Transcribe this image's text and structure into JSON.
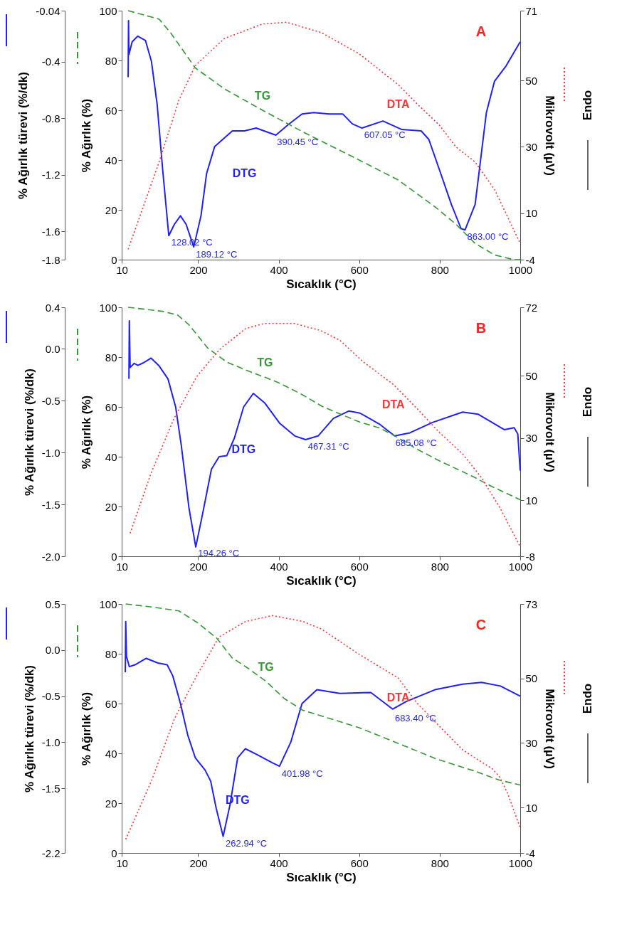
{
  "chart_data": [
    {
      "type": "line",
      "title": "A",
      "xlabel": "Sıcaklık (°C)",
      "ylabel": "% Ağırlık (%)",
      "y2label": "Mikrovolt (µV)",
      "y3label": "% Ağırlık türevi (%/dk)",
      "xlim": [
        10,
        1000
      ],
      "xticks": [
        10,
        200,
        400,
        600,
        800,
        1000
      ],
      "ylim": [
        0,
        100
      ],
      "yticks": [
        0,
        20,
        40,
        60,
        80,
        100
      ],
      "y2lim": [
        -4,
        71
      ],
      "y2ticks": [
        -4,
        10,
        30,
        50,
        71
      ],
      "y3lim": [
        -1.8,
        -0.04
      ],
      "y3ticks": [
        -1.8,
        -1.6,
        -1.2,
        -0.8,
        -0.4,
        -0.04
      ],
      "series": [
        {
          "name": "DTG",
          "axis": "y3",
          "color": "#1f1fff",
          "line_style": "solid",
          "x": [
            26,
            27,
            28,
            36,
            50,
            69,
            84,
            98,
            112,
            127,
            141,
            156,
            170,
            189,
            207,
            221,
            241,
            285,
            315,
            344,
            393,
            422,
            458,
            487,
            525,
            559,
            583,
            607,
            659,
            706,
            754,
            773,
            800,
            829,
            853,
            863,
            888,
            916,
            936,
            965,
            1000
          ],
          "values": [
            -0.51,
            -0.11,
            -0.35,
            -0.26,
            -0.22,
            -0.25,
            -0.4,
            -0.7,
            -1.17,
            -1.63,
            -1.55,
            -1.49,
            -1.55,
            -1.71,
            -1.49,
            -1.19,
            -1.0,
            -0.89,
            -0.89,
            -0.87,
            -0.92,
            -0.85,
            -0.77,
            -0.76,
            -0.77,
            -0.77,
            -0.84,
            -0.87,
            -0.82,
            -0.88,
            -0.89,
            -0.95,
            -1.17,
            -1.41,
            -1.58,
            -1.59,
            -1.41,
            -0.76,
            -0.54,
            -0.43,
            -0.26
          ]
        },
        {
          "name": "TG",
          "axis": "y",
          "color": "#339933",
          "line_style": "dashed",
          "x": [
            26,
            103,
            132,
            193,
            265,
            360,
            458,
            600,
            697,
            790,
            840,
            888,
            936,
            984,
            1000
          ],
          "values": [
            100,
            96.6,
            91,
            77,
            68.6,
            60,
            51.5,
            40,
            32,
            21,
            14.3,
            6.5,
            1.9,
            0,
            0
          ]
        },
        {
          "name": "DTA",
          "axis": "y2",
          "color": "#ff3333",
          "line_style": "dotted",
          "x": [
            26,
            103,
            152,
            193,
            265,
            360,
            420,
            506,
            600,
            697,
            745,
            800,
            840,
            888,
            936,
            1000
          ],
          "values": [
            -0.9,
            25.4,
            44,
            54.5,
            62.6,
            67,
            67.5,
            64.4,
            58,
            48.7,
            42.8,
            36.4,
            30,
            25.4,
            17.2,
            0.9
          ]
        }
      ],
      "annotations": [
        {
          "text": "128.02 °C",
          "x": 128.02,
          "y": 9.6
        },
        {
          "text": "189.12 °C",
          "x": 189.12,
          "y": 5
        },
        {
          "text": "390.45 °C",
          "x": 390.45,
          "y": 50
        },
        {
          "text": "607.05 °C",
          "x": 607.05,
          "y": 53
        },
        {
          "text": "863.00 °C",
          "x": 863.0,
          "y": 12
        },
        "Endo"
      ]
    },
    {
      "type": "line",
      "title": "B",
      "xlabel": "Sıcaklık (°C)",
      "ylabel": "% Ağırlık (%)",
      "y2label": "Mikrovolt (µV)",
      "y3label": "% Ağırlık türevi (%/dk)",
      "xlim": [
        10,
        1000
      ],
      "xticks": [
        10,
        200,
        400,
        600,
        800,
        1000
      ],
      "ylim": [
        0,
        100
      ],
      "yticks": [
        0,
        20,
        40,
        60,
        80,
        100
      ],
      "y2lim": [
        -8,
        72
      ],
      "y2ticks": [
        -8,
        10,
        30,
        50,
        72
      ],
      "y3lim": [
        -2.0,
        0.4
      ],
      "y3ticks": [
        {
          "value": -2.0,
          "label": "-2.0"
        },
        -1.5,
        {
          "value": -1.0,
          "label": "-1.0"
        },
        -0.5,
        {
          "value": 0,
          "label": "0.0"
        },
        0.4
      ],
      "series": [
        {
          "name": "DTG",
          "axis": "y3",
          "color": "#1f1fff",
          "line_style": "solid",
          "x": [
            28,
            29,
            31,
            41,
            50,
            64,
            83,
            102,
            125,
            144,
            158,
            177,
            194,
            210,
            233,
            252,
            271,
            290,
            313,
            337,
            365,
            403,
            440,
            467,
            498,
            536,
            574,
            602,
            650,
            688,
            726,
            782,
            857,
            895,
            961,
            985,
            994,
            1000
          ],
          "values": [
            -0.29,
            0.27,
            -0.18,
            -0.14,
            -0.16,
            -0.135,
            -0.09,
            -0.16,
            -0.29,
            -0.56,
            -0.93,
            -1.53,
            -1.91,
            -1.61,
            -1.16,
            -1.04,
            -1.03,
            -0.86,
            -0.56,
            -0.43,
            -0.52,
            -0.72,
            -0.84,
            -0.875,
            -0.84,
            -0.67,
            -0.6,
            -0.62,
            -0.725,
            -0.84,
            -0.81,
            -0.71,
            -0.61,
            -0.63,
            -0.78,
            -0.76,
            -0.82,
            -1.175
          ]
        },
        {
          "name": "TG",
          "axis": "y",
          "color": "#339933",
          "line_style": "dashed",
          "x": [
            26,
            111,
            149,
            177,
            224,
            271,
            328,
            366,
            403,
            460,
            508,
            555,
            600,
            650,
            688,
            744,
            800,
            883,
            930,
            1000
          ],
          "values": [
            100,
            98.4,
            96.9,
            93,
            83.6,
            78,
            74.2,
            71.9,
            69.5,
            64.8,
            60.2,
            57,
            54,
            51.6,
            48.4,
            43,
            38.3,
            32,
            28,
            22.7
          ]
        },
        {
          "name": "DTA",
          "axis": "y2",
          "color": "#ff3333",
          "line_style": "dotted",
          "x": [
            31,
            83,
            139,
            196,
            252,
            318,
            365,
            439,
            505,
            552,
            609,
            685,
            742,
            800,
            857,
            903,
            950,
            1000
          ],
          "values": [
            -0.6,
            18.7,
            36,
            49.7,
            58.3,
            65.2,
            66.8,
            66.8,
            64.5,
            61.4,
            54.6,
            47.2,
            39.7,
            31.7,
            24.9,
            17.4,
            7.5,
            -4.9
          ]
        }
      ],
      "annotations": [
        {
          "text": "194.26 °C",
          "x": 194.26,
          "y": 3.9
        },
        {
          "text": "467.31 °C",
          "x": 467.31,
          "y": 47
        },
        {
          "text": "685.08 °C",
          "x": 685.08,
          "y": 48.4
        },
        "Endo"
      ]
    },
    {
      "type": "line",
      "title": "C",
      "xlabel": "Sıcaklık (°C)",
      "ylabel": "% Ağırlık (%)",
      "y2label": "Mikrovolt (µV)",
      "y3label": "% Ağırlık türevi (%/dk)",
      "xlim": [
        10,
        1000
      ],
      "xticks": [
        10,
        200,
        400,
        600,
        800,
        1000
      ],
      "ylim": [
        0,
        100
      ],
      "yticks": [
        0,
        20,
        40,
        60,
        80,
        100
      ],
      "y2lim": [
        -4,
        73
      ],
      "y2ticks": [
        -4,
        10,
        30,
        50,
        73
      ],
      "y3lim": [
        -2.2,
        0.5
      ],
      "y3ticks": [
        -2.2,
        -1.5,
        {
          "value": -1.0,
          "label": "-1.0"
        },
        -0.5,
        {
          "value": 0,
          "label": "0.0"
        },
        0.5
      ],
      "series": [
        {
          "name": "DTG",
          "axis": "y3",
          "color": "#1f1fff",
          "line_style": "solid",
          "x": [
            19,
            20,
            22,
            29,
            43,
            71,
            100,
            123,
            137,
            156,
            174,
            193,
            217,
            231,
            245,
            262,
            279,
            298,
            317,
            345,
            383,
            402,
            430,
            458,
            495,
            552,
            629,
            683,
            716,
            788,
            857,
            904,
            951,
            1000
          ],
          "values": [
            -0.24,
            0.31,
            -0.07,
            -0.18,
            -0.16,
            -0.09,
            -0.14,
            -0.16,
            -0.28,
            -0.58,
            -0.92,
            -1.17,
            -1.3,
            -1.42,
            -1.72,
            -2.02,
            -1.68,
            -1.17,
            -1.07,
            -1.13,
            -1.22,
            -1.26,
            -1.0,
            -0.58,
            -0.43,
            -0.47,
            -0.46,
            -0.64,
            -0.56,
            -0.43,
            -0.37,
            -0.35,
            -0.39,
            -0.5
          ]
        },
        {
          "name": "TG",
          "axis": "y",
          "color": "#339933",
          "line_style": "dashed",
          "x": [
            20,
            84,
            152,
            198,
            246,
            284,
            321,
            368,
            414,
            460,
            507,
            600,
            697,
            791,
            885,
            949,
            1000
          ],
          "values": [
            100,
            98.8,
            97.2,
            92.5,
            86.3,
            78.4,
            74.5,
            69,
            62,
            57.3,
            55,
            50.3,
            44,
            37.8,
            33,
            29.2,
            27.3
          ]
        },
        {
          "name": "DTA",
          "axis": "y2",
          "color": "#ff3333",
          "line_style": "dotted",
          "x": [
            20,
            84,
            141,
            196,
            252,
            318,
            384,
            460,
            507,
            600,
            697,
            744,
            800,
            857,
            932,
            949,
            968,
            1000
          ],
          "values": [
            0.2,
            18.3,
            37.5,
            50.7,
            62.8,
            67.6,
            69.4,
            67.6,
            65.2,
            57.4,
            50.1,
            42.3,
            35.1,
            27.9,
            21.9,
            19.5,
            14.6,
            3.8
          ]
        }
      ],
      "annotations": [
        {
          "text": "262.94 °C",
          "x": 262.94,
          "y": 6.6
        },
        {
          "text": "401.98 °C",
          "x": 401.98,
          "y": 34.7
        },
        {
          "text": "683.40 °C",
          "x": 683.4,
          "y": 56.9
        },
        "Endo"
      ]
    }
  ]
}
